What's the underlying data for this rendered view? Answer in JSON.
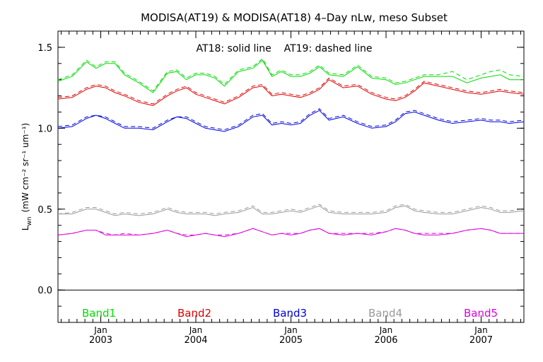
{
  "chart_data": {
    "type": "line",
    "title": "MODISA(AT19) & MODISA(AT18) 4–Day nLw, meso Subset",
    "ylabel": "L",
    "ylabel_sub": "wn",
    "ylabel_units": "(mW cm⁻² sr⁻¹ um⁻¹)",
    "annotation": "AT18: solid line    AT19: dashed line",
    "xlim": [
      2002.55,
      2007.45
    ],
    "ylim": [
      -0.2,
      1.6
    ],
    "yticks": [
      0.0,
      0.5,
      1.0,
      1.5
    ],
    "ytick_labels": [
      "0.0",
      "0.5",
      "1.0",
      "1.5"
    ],
    "xticks": [
      2003.0,
      2004.0,
      2005.0,
      2006.0,
      2007.0
    ],
    "xtick_month_labels": [
      "Jan",
      "Jan",
      "Jan",
      "Jan",
      "Jan"
    ],
    "xtick_year_labels": [
      "2003",
      "2004",
      "2005",
      "2006",
      "2007"
    ],
    "zero_line": 0.0,
    "grid": false,
    "legend_position": "bottom",
    "legend": [
      {
        "label": "Band1",
        "color": "#00dd00"
      },
      {
        "label": "Band2",
        "color": "#dd0000"
      },
      {
        "label": "Band3",
        "color": "#0000dd"
      },
      {
        "label": "Band4",
        "color": "#999999"
      },
      {
        "label": "Band5",
        "color": "#dd00dd"
      }
    ],
    "x": [
      2002.55,
      2002.7,
      2002.85,
      2002.95,
      2003.05,
      2003.15,
      2003.25,
      2003.4,
      2003.55,
      2003.7,
      2003.8,
      2003.9,
      2004.0,
      2004.1,
      2004.2,
      2004.3,
      2004.45,
      2004.6,
      2004.7,
      2004.8,
      2004.9,
      2005.0,
      2005.1,
      2005.2,
      2005.3,
      2005.4,
      2005.55,
      2005.7,
      2005.85,
      2006.0,
      2006.1,
      2006.2,
      2006.3,
      2006.4,
      2006.55,
      2006.7,
      2006.85,
      2007.0,
      2007.1,
      2007.2,
      2007.3,
      2007.45
    ],
    "series": [
      {
        "band": 1,
        "style": "solid",
        "color": "#00dd00",
        "values": [
          1.29,
          1.32,
          1.41,
          1.37,
          1.4,
          1.4,
          1.33,
          1.28,
          1.22,
          1.34,
          1.35,
          1.3,
          1.33,
          1.33,
          1.31,
          1.26,
          1.35,
          1.37,
          1.42,
          1.32,
          1.35,
          1.32,
          1.32,
          1.34,
          1.38,
          1.33,
          1.32,
          1.38,
          1.31,
          1.3,
          1.27,
          1.28,
          1.3,
          1.32,
          1.32,
          1.32,
          1.28,
          1.31,
          1.32,
          1.33,
          1.3,
          1.3
        ]
      },
      {
        "band": 1,
        "style": "dashed",
        "color": "#00dd00",
        "values": [
          1.3,
          1.33,
          1.42,
          1.38,
          1.41,
          1.41,
          1.34,
          1.29,
          1.23,
          1.35,
          1.36,
          1.31,
          1.34,
          1.34,
          1.32,
          1.27,
          1.36,
          1.38,
          1.43,
          1.33,
          1.36,
          1.33,
          1.33,
          1.35,
          1.39,
          1.34,
          1.33,
          1.39,
          1.32,
          1.31,
          1.28,
          1.29,
          1.31,
          1.33,
          1.33,
          1.35,
          1.3,
          1.33,
          1.35,
          1.36,
          1.33,
          1.32
        ]
      },
      {
        "band": 2,
        "style": "solid",
        "color": "#dd0000",
        "values": [
          1.18,
          1.19,
          1.24,
          1.26,
          1.25,
          1.22,
          1.2,
          1.16,
          1.14,
          1.2,
          1.23,
          1.25,
          1.21,
          1.19,
          1.17,
          1.15,
          1.19,
          1.25,
          1.26,
          1.2,
          1.21,
          1.2,
          1.19,
          1.21,
          1.24,
          1.3,
          1.25,
          1.26,
          1.21,
          1.18,
          1.17,
          1.19,
          1.23,
          1.28,
          1.26,
          1.24,
          1.22,
          1.21,
          1.22,
          1.23,
          1.22,
          1.21
        ]
      },
      {
        "band": 2,
        "style": "dashed",
        "color": "#dd0000",
        "values": [
          1.19,
          1.2,
          1.25,
          1.27,
          1.26,
          1.23,
          1.21,
          1.17,
          1.15,
          1.21,
          1.24,
          1.26,
          1.22,
          1.2,
          1.18,
          1.16,
          1.2,
          1.26,
          1.27,
          1.21,
          1.22,
          1.21,
          1.2,
          1.22,
          1.25,
          1.31,
          1.26,
          1.27,
          1.22,
          1.19,
          1.18,
          1.2,
          1.24,
          1.29,
          1.27,
          1.25,
          1.23,
          1.22,
          1.23,
          1.24,
          1.23,
          1.22
        ]
      },
      {
        "band": 3,
        "style": "solid",
        "color": "#0000dd",
        "values": [
          1.0,
          1.01,
          1.06,
          1.08,
          1.06,
          1.03,
          1.0,
          1.0,
          0.99,
          1.04,
          1.07,
          1.06,
          1.03,
          1.0,
          0.99,
          0.98,
          1.01,
          1.07,
          1.08,
          1.02,
          1.03,
          1.02,
          1.03,
          1.08,
          1.11,
          1.05,
          1.07,
          1.03,
          1.0,
          1.01,
          1.04,
          1.09,
          1.1,
          1.08,
          1.05,
          1.03,
          1.04,
          1.05,
          1.04,
          1.04,
          1.03,
          1.04
        ]
      },
      {
        "band": 3,
        "style": "dashed",
        "color": "#0000dd",
        "values": [
          1.01,
          1.02,
          1.07,
          1.08,
          1.07,
          1.04,
          1.01,
          1.01,
          1.0,
          1.05,
          1.07,
          1.07,
          1.04,
          1.01,
          1.0,
          0.99,
          1.02,
          1.08,
          1.09,
          1.03,
          1.04,
          1.03,
          1.04,
          1.09,
          1.12,
          1.06,
          1.08,
          1.04,
          1.01,
          1.02,
          1.05,
          1.1,
          1.11,
          1.09,
          1.06,
          1.04,
          1.05,
          1.06,
          1.05,
          1.05,
          1.04,
          1.05
        ]
      },
      {
        "band": 4,
        "style": "solid",
        "color": "#999999",
        "values": [
          0.47,
          0.47,
          0.5,
          0.5,
          0.48,
          0.46,
          0.47,
          0.46,
          0.47,
          0.5,
          0.48,
          0.47,
          0.47,
          0.47,
          0.46,
          0.47,
          0.48,
          0.51,
          0.47,
          0.47,
          0.48,
          0.49,
          0.48,
          0.5,
          0.52,
          0.48,
          0.47,
          0.47,
          0.47,
          0.48,
          0.51,
          0.52,
          0.49,
          0.48,
          0.47,
          0.47,
          0.49,
          0.51,
          0.5,
          0.48,
          0.48,
          0.49
        ]
      },
      {
        "band": 4,
        "style": "dashed",
        "color": "#999999",
        "values": [
          0.47,
          0.48,
          0.51,
          0.51,
          0.49,
          0.47,
          0.48,
          0.47,
          0.48,
          0.51,
          0.49,
          0.48,
          0.48,
          0.48,
          0.47,
          0.48,
          0.49,
          0.52,
          0.48,
          0.48,
          0.49,
          0.5,
          0.49,
          0.51,
          0.53,
          0.49,
          0.48,
          0.48,
          0.48,
          0.49,
          0.52,
          0.53,
          0.5,
          0.49,
          0.48,
          0.48,
          0.5,
          0.52,
          0.51,
          0.49,
          0.49,
          0.5
        ]
      },
      {
        "band": 5,
        "style": "solid",
        "color": "#dd00dd",
        "values": [
          0.34,
          0.35,
          0.37,
          0.37,
          0.34,
          0.34,
          0.34,
          0.34,
          0.35,
          0.37,
          0.35,
          0.33,
          0.34,
          0.35,
          0.34,
          0.33,
          0.35,
          0.38,
          0.36,
          0.34,
          0.35,
          0.34,
          0.35,
          0.37,
          0.38,
          0.35,
          0.34,
          0.35,
          0.34,
          0.36,
          0.38,
          0.37,
          0.35,
          0.34,
          0.34,
          0.35,
          0.37,
          0.38,
          0.37,
          0.35,
          0.35,
          0.35
        ]
      },
      {
        "band": 5,
        "style": "dashed",
        "color": "#dd00dd",
        "values": [
          0.34,
          0.35,
          0.37,
          0.37,
          0.35,
          0.34,
          0.35,
          0.34,
          0.35,
          0.37,
          0.35,
          0.34,
          0.34,
          0.35,
          0.34,
          0.34,
          0.35,
          0.38,
          0.36,
          0.34,
          0.35,
          0.35,
          0.35,
          0.37,
          0.38,
          0.35,
          0.35,
          0.35,
          0.35,
          0.36,
          0.38,
          0.37,
          0.35,
          0.35,
          0.35,
          0.35,
          0.37,
          0.38,
          0.37,
          0.35,
          0.35,
          0.35
        ]
      }
    ]
  }
}
